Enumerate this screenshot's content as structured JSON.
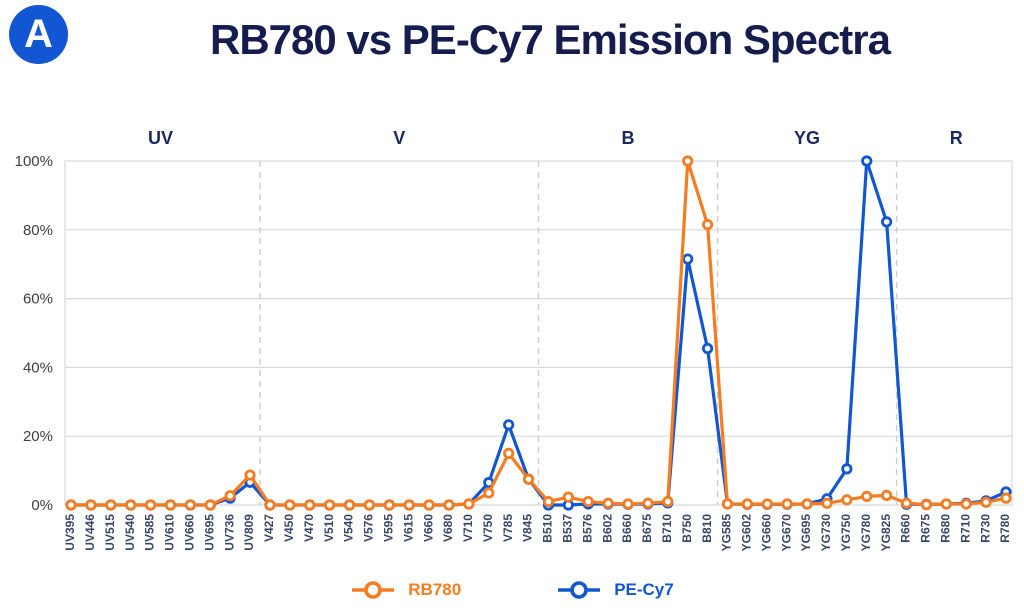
{
  "panel_label": "A",
  "title": "RB780 vs PE-Cy7 Emission Spectra",
  "colors": {
    "badge_blue": "#1356D4",
    "title_navy": "#151C4E",
    "group_label_navy": "#1B2A5E",
    "x_tick_text": "#3A4668",
    "y_tick_text": "#3F3F3F",
    "gridline": "#D9D9D9",
    "separator_dashed": "#CDCDCD",
    "series_orange": "#F57C20",
    "series_blue": "#1157D2"
  },
  "chart_data": {
    "type": "line",
    "title": "RB780 vs PE-Cy7 Emission Spectra",
    "xlabel": "",
    "ylabel": "",
    "ylim": [
      0,
      100
    ],
    "yticks": [
      {
        "label": "0%",
        "value": 0
      },
      {
        "label": "20%",
        "value": 20
      },
      {
        "label": "40%",
        "value": 40
      },
      {
        "label": "60%",
        "value": 60
      },
      {
        "label": "80%",
        "value": 80
      },
      {
        "label": "100%",
        "value": 100
      }
    ],
    "grid": true,
    "legend_position": "bottom",
    "groups": [
      {
        "label": "UV",
        "count": 10
      },
      {
        "label": "V",
        "count": 14
      },
      {
        "label": "B",
        "count": 9
      },
      {
        "label": "YG",
        "count": 9
      },
      {
        "label": "R",
        "count": 6
      }
    ],
    "categories": [
      "UV395",
      "UV446",
      "UV515",
      "UV540",
      "UV585",
      "UV610",
      "UV660",
      "UV695",
      "UV736",
      "UV809",
      "V427",
      "V450",
      "V470",
      "V510",
      "V540",
      "V576",
      "V595",
      "V615",
      "V660",
      "V680",
      "V710",
      "V750",
      "V785",
      "V845",
      "B510",
      "B537",
      "B576",
      "B602",
      "B660",
      "B675",
      "B710",
      "B750",
      "B810",
      "YG585",
      "YG602",
      "YG660",
      "YG670",
      "YG695",
      "YG730",
      "YG750",
      "YG780",
      "YG825",
      "R660",
      "R675",
      "R680",
      "R710",
      "R730",
      "R780"
    ],
    "series": [
      {
        "name": "RB780",
        "color": "#F57C20",
        "values": [
          0,
          0,
          0,
          0,
          0,
          0,
          0,
          0,
          2.7,
          8.7,
          0,
          0,
          0,
          0,
          0,
          0,
          0,
          0,
          0,
          0,
          0.3,
          3.5,
          15,
          7.5,
          1,
          2.3,
          1,
          0.5,
          0.3,
          0.5,
          1,
          100,
          81.5,
          0.3,
          0.3,
          0.3,
          0.3,
          0.3,
          0.5,
          1.5,
          2.5,
          2.8,
          0.5,
          0.1,
          0.3,
          0.3,
          0.8,
          2
        ]
      },
      {
        "name": "PE-Cy7",
        "color": "#1157D2",
        "values": [
          0,
          0,
          0,
          0,
          0,
          0,
          0,
          0,
          2,
          6.6,
          0,
          0,
          0,
          0,
          0,
          0,
          0,
          0,
          0,
          0,
          0.3,
          6.5,
          23.3,
          7.5,
          0,
          0,
          0.3,
          0.3,
          0.2,
          0.3,
          0.6,
          71.5,
          45.5,
          0.3,
          0.2,
          0.2,
          0.2,
          0.3,
          1.8,
          10.5,
          100,
          82.3,
          0.2,
          0.2,
          0.3,
          0.5,
          1.2,
          3.8
        ]
      }
    ]
  }
}
